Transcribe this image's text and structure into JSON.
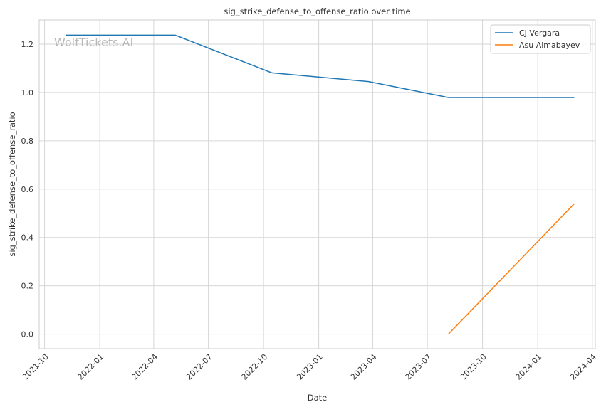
{
  "watermark": "WolfTickets.AI",
  "chart_data": {
    "type": "line",
    "title": "sig_strike_defense_to_offense_ratio over time",
    "xlabel": "Date",
    "ylabel": "sig_strike_defense_to_offense_ratio",
    "x_range": [
      "2021-09-22",
      "2024-04-06"
    ],
    "ylim": [
      -0.06,
      1.3
    ],
    "x_ticks": [
      "2021-10",
      "2022-01",
      "2022-04",
      "2022-07",
      "2022-10",
      "2023-01",
      "2023-04",
      "2023-07",
      "2023-10",
      "2024-01",
      "2024-04"
    ],
    "y_ticks": [
      "0.0",
      "0.2",
      "0.4",
      "0.6",
      "0.8",
      "1.0",
      "1.2"
    ],
    "grid": true,
    "legend": "top-right",
    "series": [
      {
        "name": "CJ Vergara",
        "color": "#1f77b4",
        "points": [
          {
            "x": "2021-11-06",
            "y": 1.237
          },
          {
            "x": "2022-05-07",
            "y": 1.237
          },
          {
            "x": "2022-10-15",
            "y": 1.081
          },
          {
            "x": "2023-03-25",
            "y": 1.045
          },
          {
            "x": "2023-08-05",
            "y": 0.979
          },
          {
            "x": "2024-03-02",
            "y": 0.979
          }
        ]
      },
      {
        "name": "Asu Almabayev",
        "color": "#ff7f0e",
        "points": [
          {
            "x": "2023-08-05",
            "y": 0.0
          },
          {
            "x": "2024-03-02",
            "y": 0.54
          }
        ]
      }
    ]
  }
}
